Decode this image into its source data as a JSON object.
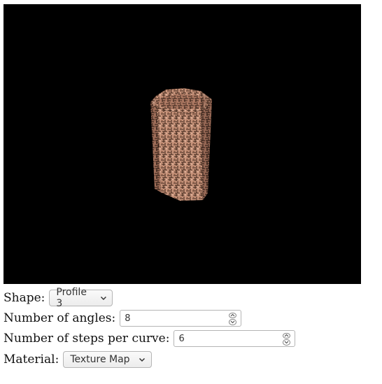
{
  "controls": {
    "shape_label": "Shape:",
    "shape_value": "Profile 3",
    "angles_label": "Number of angles:",
    "angles_value": "8",
    "steps_label": "Number of steps per curve:",
    "steps_value": "6",
    "material_label": "Material:",
    "material_value": "Texture Map"
  },
  "icons": {
    "dropdown": "chevron-down-icon",
    "spin_up": "chevron-up-icon",
    "spin_down": "chevron-down-icon"
  },
  "colors": {
    "viewport_bg": "#000000",
    "texture_base": "#c9957c",
    "texture_dark": "#3a2418"
  }
}
